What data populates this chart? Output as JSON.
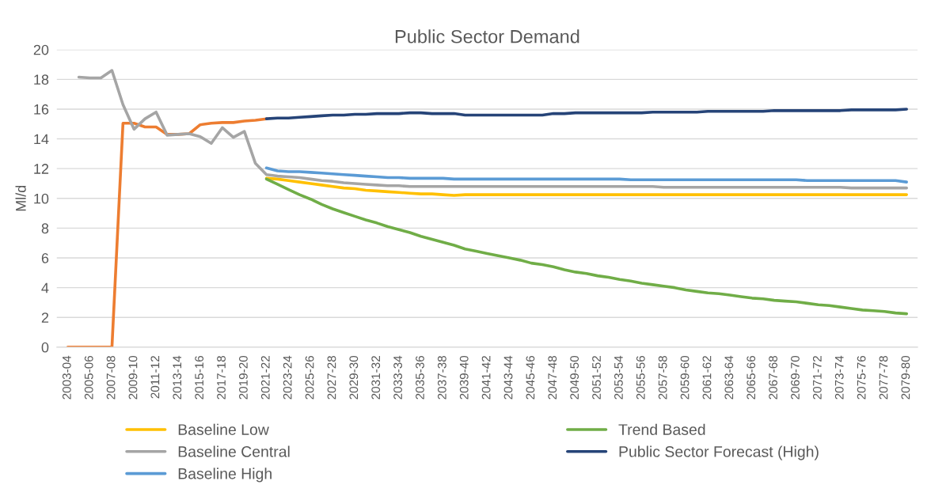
{
  "chart_data": {
    "type": "line",
    "title": "Public Sector Demand",
    "ylabel": "Ml/d",
    "categories": [
      "2003-04",
      null,
      "2005-06",
      null,
      "2007-08",
      null,
      "2009-10",
      null,
      "2011-12",
      null,
      "2013-14",
      null,
      "2015-16",
      null,
      "2017-18",
      null,
      "2019-20",
      null,
      "2021-22",
      null,
      "2023-24",
      null,
      "2025-26",
      null,
      "2027-28",
      null,
      "2029-30",
      null,
      "2031-32",
      null,
      "2033-34",
      null,
      "2035-36",
      null,
      "2037-38",
      null,
      "2039-40",
      null,
      "2041-42",
      null,
      "2043-44",
      null,
      "2045-46",
      null,
      "2047-48",
      null,
      "2049-50",
      null,
      "2051-52",
      null,
      "2053-54",
      null,
      "2055-56",
      null,
      "2057-58",
      null,
      "2059-60",
      null,
      "2061-62",
      null,
      "2063-64",
      null,
      "2065-66",
      null,
      "2067-68",
      null,
      "2069-70",
      null,
      "2071-72",
      null,
      "2073-74",
      null,
      "2075-76",
      null,
      "2077-78",
      null,
      "2079-80"
    ],
    "ylim": [
      0,
      20
    ],
    "yticks": [
      0,
      2,
      4,
      6,
      8,
      10,
      12,
      14,
      16,
      18,
      20
    ],
    "grid": "y",
    "legend": "bottom",
    "marker": "none",
    "line_style": "solid",
    "series": [
      {
        "color": "#ed7d31",
        "values": [
          0,
          0,
          0,
          0,
          0,
          15.05,
          15.05,
          14.8,
          14.8,
          14.3,
          14.3,
          14.35,
          14.95,
          15.05,
          15.1,
          15.1,
          15.2,
          15.25,
          15.35,
          null,
          null,
          null,
          null,
          null,
          null,
          null,
          null,
          null,
          null,
          null,
          null,
          null,
          null,
          null,
          null,
          null,
          null,
          null,
          null,
          null,
          null,
          null,
          null,
          null,
          null,
          null,
          null,
          null,
          null,
          null,
          null,
          null,
          null,
          null,
          null,
          null,
          null,
          null,
          null,
          null,
          null,
          null,
          null,
          null,
          null,
          null,
          null,
          null,
          null,
          null,
          null,
          null,
          null,
          null,
          null,
          null,
          null
        ]
      },
      {
        "name": "Baseline Low",
        "color": "#ffc000",
        "values": [
          null,
          null,
          null,
          null,
          null,
          null,
          null,
          null,
          null,
          null,
          null,
          null,
          null,
          null,
          null,
          null,
          null,
          null,
          11.35,
          11.3,
          11.2,
          11.1,
          11.0,
          10.9,
          10.8,
          10.7,
          10.65,
          10.55,
          10.5,
          10.45,
          10.4,
          10.35,
          10.3,
          10.3,
          10.25,
          10.2,
          10.25,
          10.25,
          10.25,
          10.25,
          10.25,
          10.25,
          10.25,
          10.25,
          10.25,
          10.25,
          10.25,
          10.25,
          10.25,
          10.25,
          10.25,
          10.25,
          10.25,
          10.25,
          10.25,
          10.25,
          10.25,
          10.25,
          10.25,
          10.25,
          10.25,
          10.25,
          10.25,
          10.25,
          10.25,
          10.25,
          10.25,
          10.25,
          10.25,
          10.25,
          10.25,
          10.25,
          10.25,
          10.25,
          10.25,
          10.25,
          10.25
        ]
      },
      {
        "name": "Baseline Central",
        "color": "#a5a5a5",
        "values": [
          null,
          18.15,
          18.1,
          18.1,
          18.6,
          16.3,
          14.65,
          15.35,
          15.8,
          14.25,
          14.3,
          14.35,
          14.15,
          13.7,
          14.75,
          14.1,
          14.5,
          12.35,
          11.6,
          11.5,
          11.45,
          11.4,
          11.3,
          11.2,
          11.15,
          11.05,
          11.0,
          10.95,
          10.9,
          10.85,
          10.85,
          10.8,
          10.8,
          10.8,
          10.8,
          10.8,
          10.8,
          10.8,
          10.8,
          10.8,
          10.8,
          10.8,
          10.8,
          10.8,
          10.8,
          10.8,
          10.8,
          10.8,
          10.8,
          10.8,
          10.8,
          10.8,
          10.8,
          10.8,
          10.75,
          10.75,
          10.75,
          10.75,
          10.75,
          10.75,
          10.75,
          10.75,
          10.75,
          10.75,
          10.75,
          10.75,
          10.75,
          10.75,
          10.75,
          10.75,
          10.75,
          10.7,
          10.7,
          10.7,
          10.7,
          10.7,
          10.7
        ]
      },
      {
        "name": "Baseline High",
        "color": "#5b9bd5",
        "values": [
          null,
          null,
          null,
          null,
          null,
          null,
          null,
          null,
          null,
          null,
          null,
          null,
          null,
          null,
          null,
          null,
          null,
          null,
          12.05,
          11.85,
          11.8,
          11.8,
          11.75,
          11.7,
          11.65,
          11.6,
          11.55,
          11.5,
          11.45,
          11.4,
          11.4,
          11.35,
          11.35,
          11.35,
          11.35,
          11.3,
          11.3,
          11.3,
          11.3,
          11.3,
          11.3,
          11.3,
          11.3,
          11.3,
          11.3,
          11.3,
          11.3,
          11.3,
          11.3,
          11.3,
          11.3,
          11.25,
          11.25,
          11.25,
          11.25,
          11.25,
          11.25,
          11.25,
          11.25,
          11.25,
          11.25,
          11.25,
          11.25,
          11.25,
          11.25,
          11.25,
          11.25,
          11.2,
          11.2,
          11.2,
          11.2,
          11.2,
          11.2,
          11.2,
          11.2,
          11.2,
          11.1
        ]
      },
      {
        "name": "Trend Based",
        "color": "#70ad47",
        "values": [
          null,
          null,
          null,
          null,
          null,
          null,
          null,
          null,
          null,
          null,
          null,
          null,
          null,
          null,
          null,
          null,
          null,
          null,
          11.3,
          10.95,
          10.6,
          10.25,
          9.95,
          9.6,
          9.3,
          9.05,
          8.8,
          8.55,
          8.35,
          8.1,
          7.9,
          7.7,
          7.45,
          7.25,
          7.05,
          6.85,
          6.6,
          6.45,
          6.3,
          6.15,
          6.0,
          5.85,
          5.65,
          5.55,
          5.4,
          5.2,
          5.05,
          4.95,
          4.8,
          4.7,
          4.55,
          4.45,
          4.3,
          4.2,
          4.1,
          4.0,
          3.85,
          3.75,
          3.65,
          3.6,
          3.5,
          3.4,
          3.3,
          3.25,
          3.15,
          3.1,
          3.05,
          2.95,
          2.85,
          2.8,
          2.7,
          2.6,
          2.5,
          2.45,
          2.4,
          2.3,
          2.25
        ]
      },
      {
        "name": "Public Sector Forecast (High)",
        "color": "#264478",
        "values": [
          null,
          null,
          null,
          null,
          null,
          null,
          null,
          null,
          null,
          null,
          null,
          null,
          null,
          null,
          null,
          null,
          null,
          null,
          15.35,
          15.4,
          15.4,
          15.45,
          15.5,
          15.55,
          15.6,
          15.6,
          15.65,
          15.65,
          15.7,
          15.7,
          15.7,
          15.75,
          15.75,
          15.7,
          15.7,
          15.7,
          15.6,
          15.6,
          15.6,
          15.6,
          15.6,
          15.6,
          15.6,
          15.6,
          15.7,
          15.7,
          15.75,
          15.75,
          15.75,
          15.75,
          15.75,
          15.75,
          15.75,
          15.8,
          15.8,
          15.8,
          15.8,
          15.8,
          15.85,
          15.85,
          15.85,
          15.85,
          15.85,
          15.85,
          15.9,
          15.9,
          15.9,
          15.9,
          15.9,
          15.9,
          15.9,
          15.95,
          15.95,
          15.95,
          15.95,
          15.95,
          16.0
        ]
      }
    ]
  }
}
